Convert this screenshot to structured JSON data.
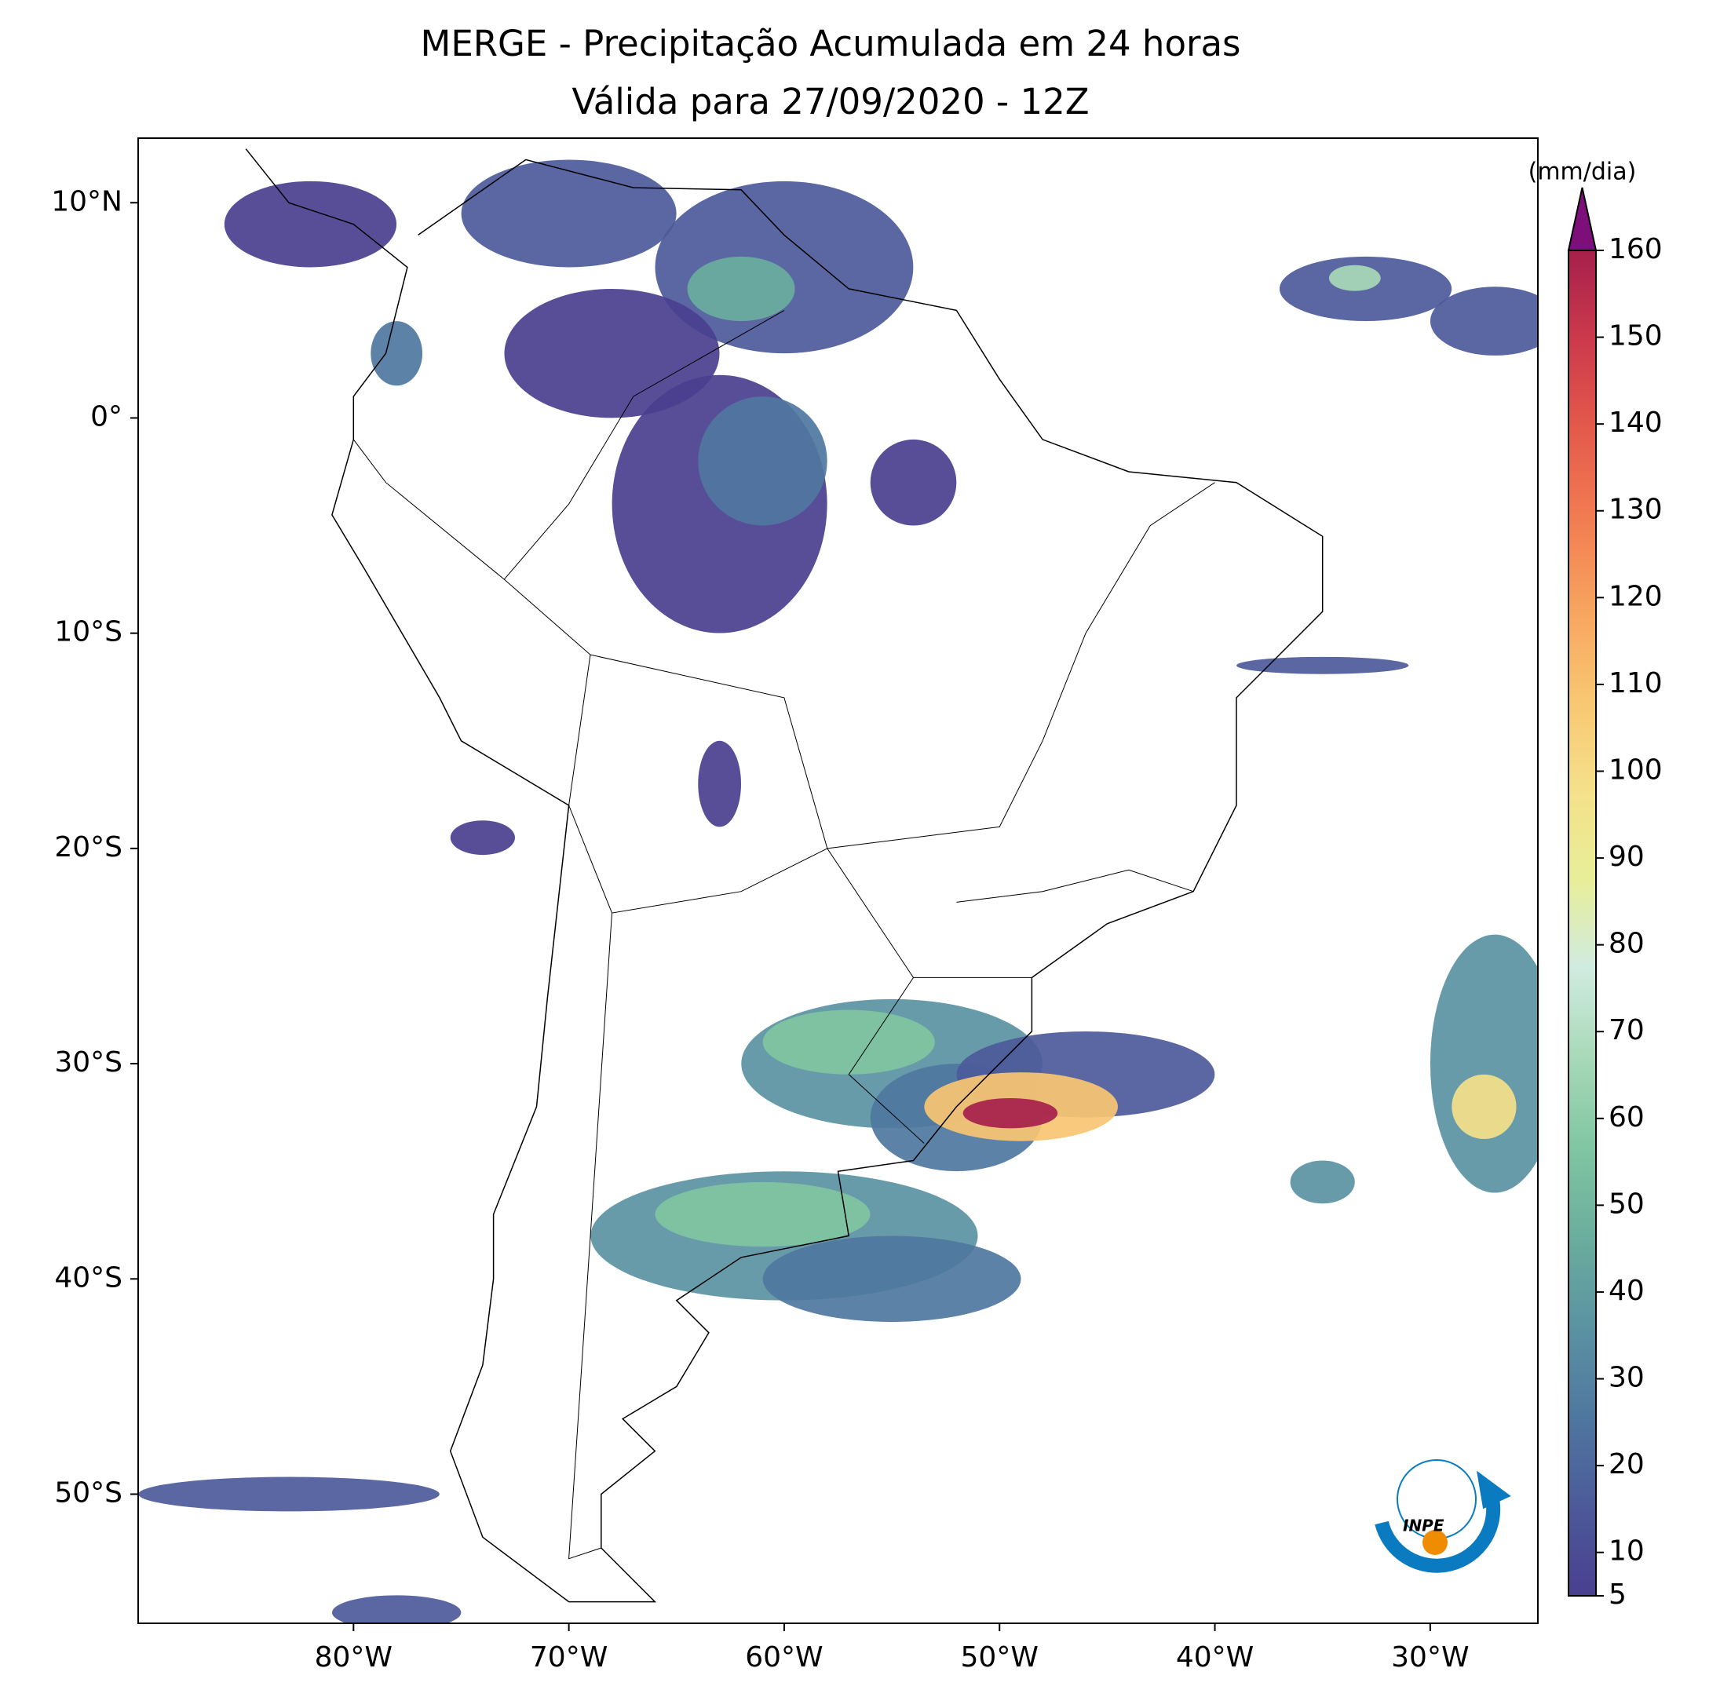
{
  "map": {
    "title": [
      "MERGE - Precipitação Acumulada em 24 horas",
      "Válida para 27/09/2020 - 12Z"
    ],
    "lonlim": [
      -90,
      -25
    ],
    "latlim": [
      -56,
      13
    ],
    "lon_ticks": [
      {
        "value": -80,
        "label": "80°W"
      },
      {
        "value": -70,
        "label": "70°W"
      },
      {
        "value": -60,
        "label": "60°W"
      },
      {
        "value": -50,
        "label": "50°W"
      },
      {
        "value": -40,
        "label": "40°W"
      },
      {
        "value": -30,
        "label": "30°W"
      }
    ],
    "lat_ticks": [
      {
        "value": 10,
        "label": "10°N"
      },
      {
        "value": 0,
        "label": "0°"
      },
      {
        "value": -10,
        "label": "10°S"
      },
      {
        "value": -20,
        "label": "20°S"
      },
      {
        "value": -30,
        "label": "30°S"
      },
      {
        "value": -40,
        "label": "40°S"
      },
      {
        "value": -50,
        "label": "50°S"
      }
    ],
    "logo": "INPE"
  },
  "colorbar": {
    "label": "(mm/dia)",
    "lim": [
      5,
      160
    ],
    "ticks": [
      5,
      10,
      20,
      30,
      40,
      50,
      60,
      70,
      80,
      90,
      100,
      110,
      120,
      130,
      140,
      150,
      160
    ],
    "colors": [
      "#4a3f8f",
      "#4c5a9a",
      "#4f77a0",
      "#5b93a2",
      "#6aae9d",
      "#80c6a2",
      "#a8d9b8",
      "#d0ebe0",
      "#e8ee98",
      "#f5e08a",
      "#f9c672",
      "#f7a45f",
      "#f27c52",
      "#e45a4b",
      "#cc3a4c",
      "#a6204c"
    ],
    "extend_color": "#7d0f7a"
  }
}
